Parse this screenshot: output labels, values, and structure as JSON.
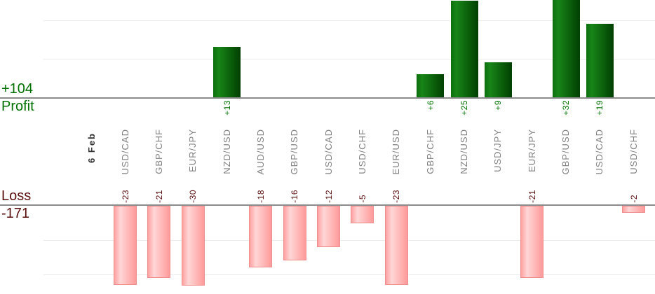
{
  "summary": {
    "profit_total": "+104",
    "profit_label": "Profit",
    "loss_label": "Loss",
    "loss_total": "-171",
    "date_label": "6 Feb"
  },
  "colors": {
    "profit_text": "#007000",
    "loss_text": "#5a0f0f",
    "pair_label_text": "#808080",
    "date_text": "#333333",
    "profit_bar_light": "#178517",
    "profit_bar_dark": "#013f01",
    "loss_bar_light": "#ffd6d6",
    "loss_bar_main": "#ff9a9a",
    "loss_bar_border": "#ee8e8e",
    "baseline": "#8c8c8c",
    "gridline": "#ececec"
  },
  "chart_data": {
    "type": "bar",
    "title": "",
    "date_label": "6 Feb",
    "axis": {
      "profit_total_label": "+104",
      "profit_axis_label": "Profit",
      "loss_axis_label": "Loss",
      "loss_total_label": "-171",
      "gridline_step": 10,
      "profit_ylim": [
        0,
        35
      ],
      "loss_ylim": [
        -30,
        0
      ],
      "grid": "on",
      "legend": "none"
    },
    "profit_total": 104,
    "loss_total": -171,
    "categories": [
      "USD/CAD",
      "GBP/CHF",
      "EUR/JPY",
      "NZD/USD",
      "AUD/USD",
      "GBP/USD",
      "USD/CAD",
      "USD/CHF",
      "EUR/USD",
      "GBP/CHF",
      "NZD/USD",
      "USD/JPY",
      "EUR/JPY",
      "GBP/USD",
      "USD/CAD",
      "USD/CHF"
    ],
    "values": [
      -23,
      -21,
      -30,
      13,
      -18,
      -16,
      -12,
      -5,
      -23,
      6,
      25,
      9,
      -21,
      32,
      19,
      -2
    ],
    "bars": [
      {
        "pair": "USD/CAD",
        "value": -23,
        "label": "-23"
      },
      {
        "pair": "GBP/CHF",
        "value": -21,
        "label": "-21"
      },
      {
        "pair": "EUR/JPY",
        "value": -30,
        "label": "-30"
      },
      {
        "pair": "NZD/USD",
        "value": 13,
        "label": "+13"
      },
      {
        "pair": "AUD/USD",
        "value": -18,
        "label": "-18"
      },
      {
        "pair": "GBP/USD",
        "value": -16,
        "label": "-16"
      },
      {
        "pair": "USD/CAD",
        "value": -12,
        "label": "-12"
      },
      {
        "pair": "USD/CHF",
        "value": -5,
        "label": "-5"
      },
      {
        "pair": "EUR/USD",
        "value": -23,
        "label": "-23"
      },
      {
        "pair": "GBP/CHF",
        "value": 6,
        "label": "+6"
      },
      {
        "pair": "NZD/USD",
        "value": 25,
        "label": "+25"
      },
      {
        "pair": "USD/JPY",
        "value": 9,
        "label": "+9"
      },
      {
        "pair": "EUR/JPY",
        "value": -21,
        "label": "-21"
      },
      {
        "pair": "GBP/USD",
        "value": 32,
        "label": "+32"
      },
      {
        "pair": "USD/CAD",
        "value": 19,
        "label": "+19"
      },
      {
        "pair": "USD/CHF",
        "value": -2,
        "label": "-2"
      }
    ]
  }
}
